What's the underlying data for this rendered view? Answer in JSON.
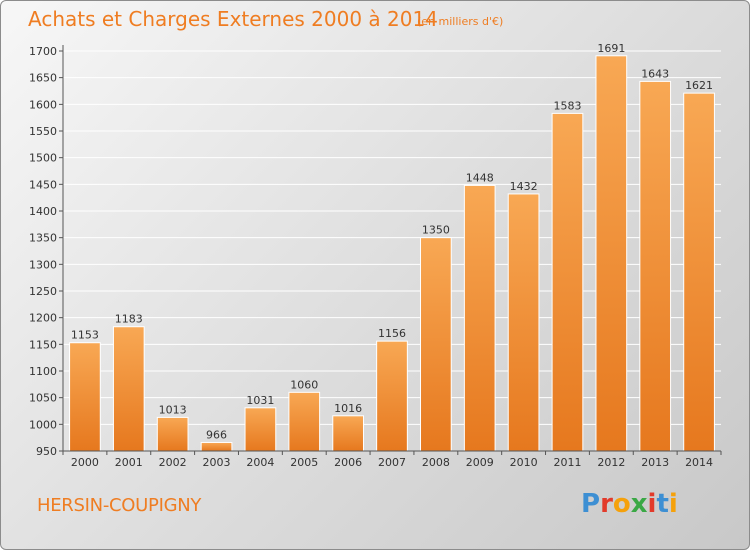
{
  "title": "Achats et Charges Externes 2000 à 2014",
  "subtitle": "(en milliers d'€)",
  "commune": "HERSIN-COUPIGNY",
  "logo": {
    "letters": [
      "P",
      "r",
      "o",
      "x",
      "i",
      "t",
      "i"
    ]
  },
  "colors": {
    "title": "#ef7d22",
    "bar_top": "#f8a854",
    "bar_bottom": "#e6781e",
    "logo": [
      "#3d8fd3",
      "#e23a2a",
      "#f5a10b",
      "#3aa845",
      "#e23a2a",
      "#3d8fd3",
      "#f5a10b"
    ]
  },
  "chart_data": {
    "type": "bar",
    "categories": [
      "2000",
      "2001",
      "2002",
      "2003",
      "2004",
      "2005",
      "2006",
      "2007",
      "2008",
      "2009",
      "2010",
      "2011",
      "2012",
      "2013",
      "2014"
    ],
    "values": [
      1153,
      1183,
      1013,
      966,
      1031,
      1060,
      1016,
      1156,
      1350,
      1448,
      1432,
      1583,
      1691,
      1643,
      1621
    ],
    "data_labels": [
      "1153",
      "1183",
      "1013",
      "966",
      "1031",
      "1060",
      "1016",
      "1156",
      "1350",
      "1448",
      "1432",
      "1583",
      "1691",
      "1643",
      "1621"
    ],
    "ylim": [
      950,
      1700
    ],
    "yticks": [
      "950",
      "1000",
      "1050",
      "1100",
      "1150",
      "1200",
      "1250",
      "1300",
      "1350",
      "1400",
      "1450",
      "1500",
      "1550",
      "1600",
      "1650",
      "1700"
    ],
    "grid": true
  }
}
